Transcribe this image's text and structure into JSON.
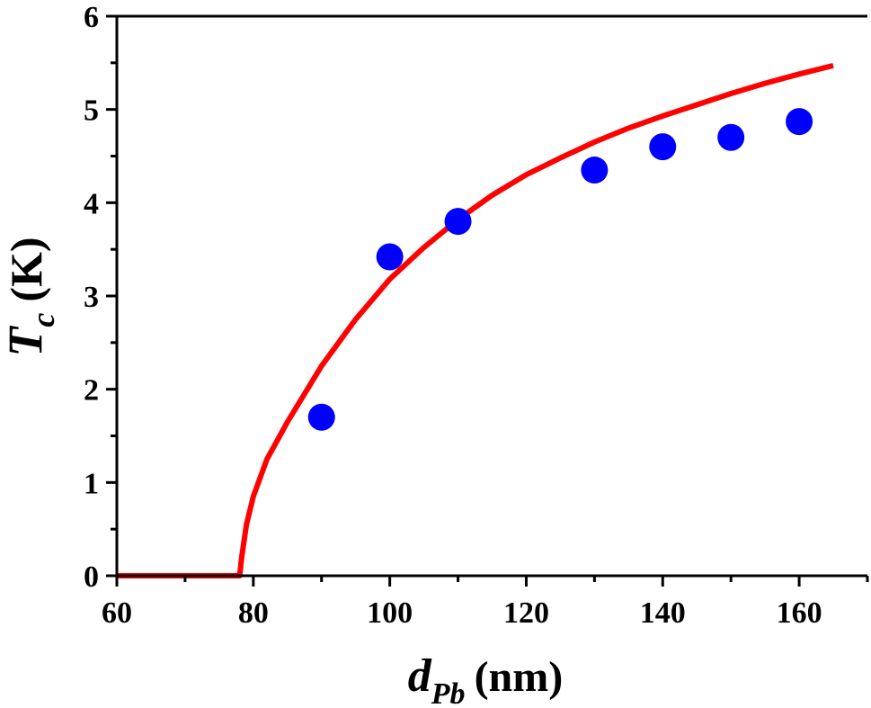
{
  "chart_data": {
    "type": "scatter",
    "x_axis": {
      "label_main": "d",
      "label_sub": "Pb",
      "label_unit": "(nm)",
      "range": [
        60,
        170
      ],
      "ticks": [
        60,
        80,
        100,
        120,
        140,
        160
      ],
      "tick_labels": [
        "60",
        "80",
        "100",
        "120",
        "140",
        "160"
      ]
    },
    "y_axis": {
      "label_main": "T",
      "label_sub": "c",
      "label_unit": "(K)",
      "range": [
        0,
        6
      ],
      "ticks": [
        0,
        1,
        2,
        3,
        4,
        5,
        6
      ],
      "tick_labels": [
        "0",
        "1",
        "2",
        "3",
        "4",
        "5",
        "6"
      ]
    },
    "grid": false,
    "legend": "none",
    "series": [
      {
        "kind": "scatter",
        "color": "#0000ff",
        "x": [
          90,
          100,
          110,
          130,
          140,
          150,
          160
        ],
        "y": [
          1.7,
          3.42,
          3.8,
          4.35,
          4.6,
          4.7,
          4.87
        ]
      },
      {
        "kind": "line",
        "color": "#ff0000",
        "x": [
          60,
          78,
          78.3,
          79,
          80,
          82,
          85,
          90,
          95,
          100,
          105,
          110,
          115,
          120,
          125,
          130,
          135,
          140,
          145,
          150,
          155,
          160,
          165
        ],
        "y": [
          0,
          0,
          0.2,
          0.55,
          0.85,
          1.25,
          1.65,
          2.25,
          2.75,
          3.18,
          3.52,
          3.82,
          4.08,
          4.3,
          4.48,
          4.65,
          4.8,
          4.93,
          5.05,
          5.17,
          5.28,
          5.38,
          5.47
        ]
      }
    ]
  }
}
